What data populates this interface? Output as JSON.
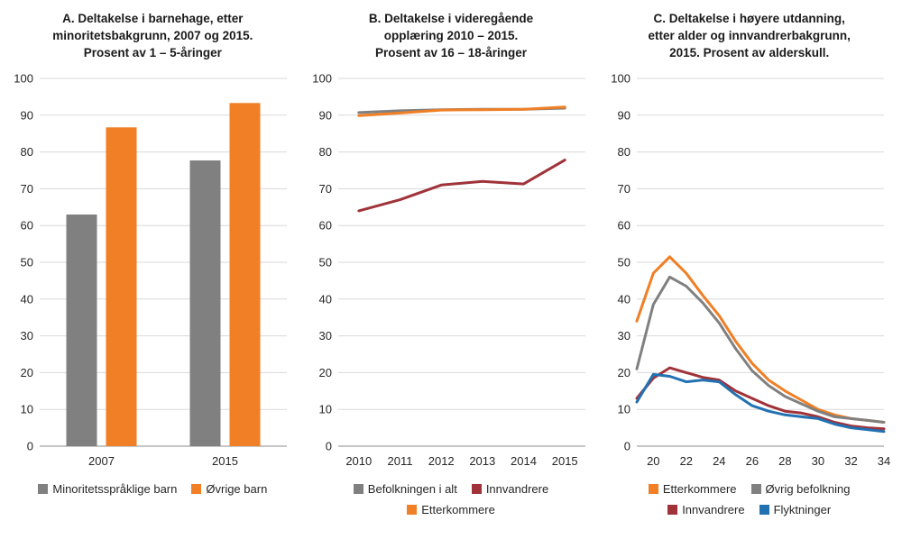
{
  "colors": {
    "grid": "#d9d9d9",
    "axis": "#8c8c8c",
    "text": "#262626",
    "gray": "#808080",
    "orange": "#F07F25",
    "dark_red": "#A0333A",
    "blue": "#2271B2"
  },
  "chart_data": [
    {
      "type": "bar",
      "title": "A. Deltakelse i barnehage, etter\nminoritetsbakgrunn, 2007 og 2015.\nProsent av 1 – 5-åringer",
      "categories": [
        "2007",
        "2015"
      ],
      "series": [
        {
          "name": "Minoritetsspråklige barn",
          "color": "#808080",
          "values": [
            63,
            77.7
          ]
        },
        {
          "name": "Øvrige barn",
          "color": "#F07F25",
          "values": [
            86.7,
            93.3
          ]
        }
      ],
      "ylim": [
        0,
        100
      ],
      "ytick": 10,
      "grid": true,
      "legend_rows": [
        [
          0,
          1
        ]
      ]
    },
    {
      "type": "line",
      "title": "B. Deltakelse i videregående\nopplæring 2010 – 2015.\nProsent av 16 – 18-åringer",
      "x": [
        2010,
        2011,
        2012,
        2013,
        2014,
        2015
      ],
      "x_numeric": false,
      "series": [
        {
          "name": "Befolkningen i alt",
          "color": "#808080",
          "values": [
            90.7,
            91.2,
            91.5,
            91.6,
            91.6,
            91.9
          ]
        },
        {
          "name": "Innvandrere",
          "color": "#A0333A",
          "values": [
            64,
            67,
            71,
            72,
            71.3,
            77.8
          ]
        },
        {
          "name": "Etterkommere",
          "color": "#F07F25",
          "values": [
            89.9,
            90.6,
            91.4,
            91.5,
            91.6,
            92.2
          ]
        }
      ],
      "ylim": [
        0,
        100
      ],
      "ytick": 10,
      "grid": true,
      "legend_rows": [
        [
          0,
          1
        ],
        [
          2
        ]
      ]
    },
    {
      "type": "line",
      "title": "C. Deltakelse i høyere utdanning,\netter alder og innvandrerbakgrunn,\n2015. Prosent av alderskull.",
      "x": [
        19,
        20,
        21,
        22,
        23,
        24,
        25,
        26,
        27,
        28,
        29,
        30,
        31,
        32,
        33,
        34
      ],
      "x_numeric": true,
      "xticks": [
        20,
        22,
        24,
        26,
        28,
        30,
        32,
        34
      ],
      "series": [
        {
          "name": "Etterkommere",
          "color": "#F07F25",
          "values": [
            34,
            47,
            51.5,
            47,
            41,
            35.5,
            28.5,
            22.5,
            18,
            15,
            12.5,
            10,
            8.5,
            7.5,
            7,
            6.5
          ]
        },
        {
          "name": "Øvrig befolkning",
          "color": "#808080",
          "values": [
            21,
            38.5,
            46,
            43.5,
            39,
            33.5,
            26.5,
            20.5,
            16.5,
            13.5,
            11.5,
            9.5,
            8,
            7.5,
            7,
            6.5
          ]
        },
        {
          "name": "Innvandrere",
          "color": "#A0333A",
          "values": [
            13,
            18.5,
            21.3,
            20,
            18.7,
            18,
            15,
            13,
            11,
            9.5,
            9,
            8,
            6.5,
            5.5,
            5,
            4.7
          ]
        },
        {
          "name": "Flyktninger",
          "color": "#2271B2",
          "values": [
            12,
            19.5,
            19,
            17.5,
            18,
            17.5,
            14,
            11,
            9.5,
            8.5,
            8,
            7.5,
            6,
            5,
            4.5,
            4
          ]
        }
      ],
      "ylim": [
        0,
        100
      ],
      "ytick": 10,
      "grid": true,
      "legend_rows": [
        [
          0,
          1
        ],
        [
          2,
          3
        ]
      ]
    }
  ]
}
